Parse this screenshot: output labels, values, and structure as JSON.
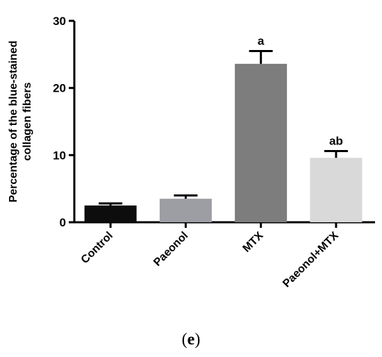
{
  "chart_data": {
    "type": "bar",
    "categories": [
      "Control",
      "Paeonol",
      "MTX",
      "Paeonol+MTX"
    ],
    "values": [
      2.5,
      3.5,
      23.6,
      9.6
    ],
    "errors": [
      0.3,
      0.5,
      1.9,
      1.0
    ],
    "annotations": [
      "",
      "",
      "a",
      "ab"
    ],
    "colors": [
      "#0d0d0d",
      "#9d9ea3",
      "#7d7d7d",
      "#d9d9d9"
    ],
    "ylabel_line1": "Percentage of the blue-stained",
    "ylabel_line2": "collagen fibers",
    "ylim": [
      0,
      30
    ],
    "yticks": [
      0,
      10,
      20,
      30
    ],
    "grid": false
  },
  "panel": {
    "open": "(",
    "letter": "e",
    "close": ")"
  }
}
